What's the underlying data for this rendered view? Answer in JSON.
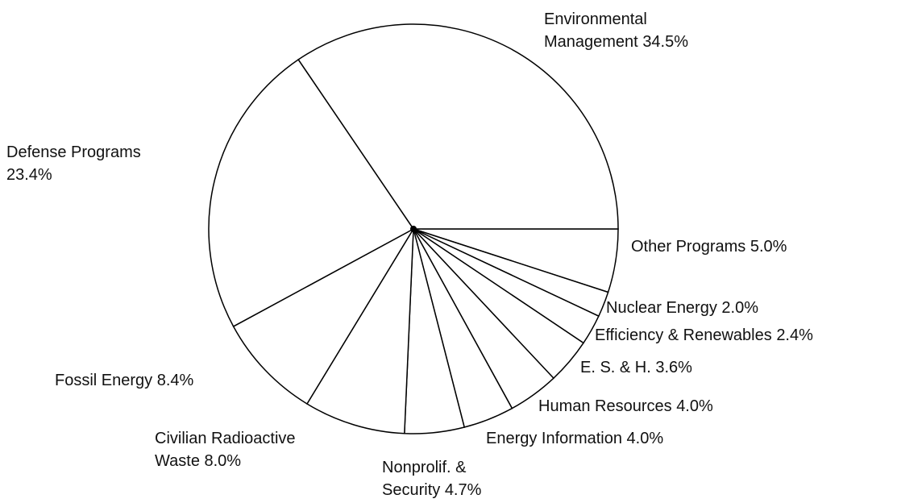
{
  "chart_data": {
    "type": "pie",
    "categories": [
      "Other Programs",
      "Nuclear Energy",
      "Efficiency & Renewables",
      "E. S. & H.",
      "Human Resources",
      "Energy Information",
      "Nonprolif. &\nSecurity",
      "Civilian Radioactive\nWaste",
      "Fossil Energy",
      "Defense Programs",
      "Environmental\nManagement"
    ],
    "values": [
      5.0,
      2.0,
      2.4,
      3.6,
      4.0,
      4.0,
      4.7,
      8.0,
      8.4,
      23.4,
      34.5
    ],
    "value_labels": [
      "5.0%",
      "2.0%",
      "2.4%",
      "3.6%",
      "4.0%",
      "4.0%",
      "4.7%",
      "8.0%",
      "8.4%",
      "23.4%",
      "34.5%"
    ],
    "color": "#ffffff",
    "stroke": "#000000"
  }
}
